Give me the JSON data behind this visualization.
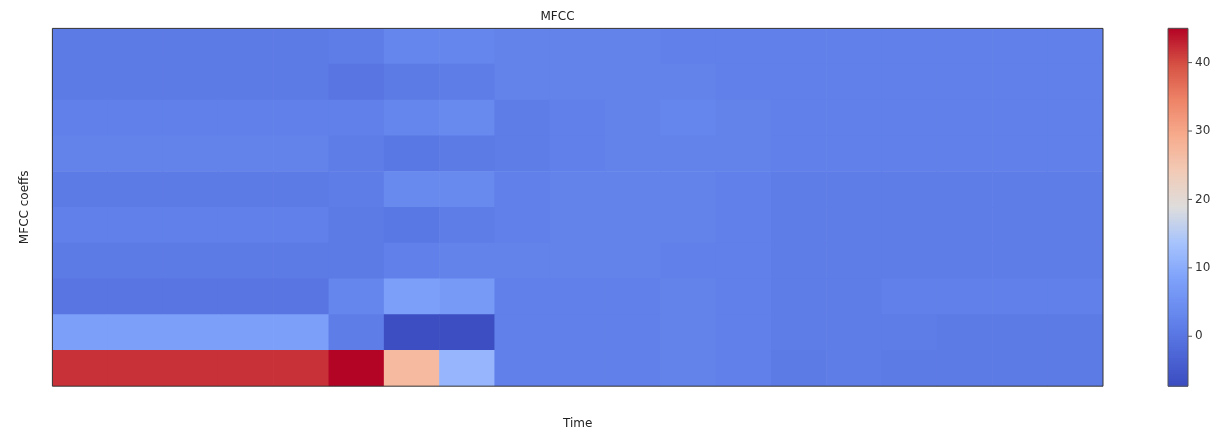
{
  "chart_data": {
    "type": "heatmap",
    "title": "MFCC",
    "xlabel": "Time",
    "ylabel": "MFCC coeffs",
    "categories": [
      null,
      null,
      null,
      null,
      null,
      null,
      null,
      null,
      null,
      null,
      null,
      null,
      null,
      null,
      null,
      null,
      null,
      null,
      null
    ],
    "y_categories": [
      null,
      null,
      null,
      null,
      null,
      null,
      null,
      null,
      null,
      null
    ],
    "cells": [
      [
        1,
        1,
        1,
        1,
        1,
        1.5,
        3,
        3,
        2.5,
        2.5,
        2.5,
        2,
        2,
        2,
        2,
        2,
        2,
        2,
        2
      ],
      [
        1,
        1,
        1,
        1,
        1,
        0,
        1,
        1.5,
        2.5,
        2.5,
        2.5,
        2.5,
        2,
        2,
        2,
        2,
        2,
        2,
        2
      ],
      [
        2,
        2,
        2,
        2,
        2,
        2,
        3,
        3.5,
        1.5,
        2,
        2.5,
        3,
        2.5,
        2,
        2,
        2,
        2,
        2,
        2
      ],
      [
        2.5,
        2.5,
        2.5,
        2.5,
        2.5,
        1.5,
        0.5,
        1,
        1.5,
        2,
        2.5,
        2.5,
        2.5,
        2,
        2,
        2,
        2,
        2,
        2
      ],
      [
        1,
        1,
        1,
        1,
        1,
        1.5,
        3.5,
        3.5,
        2,
        2.5,
        2.5,
        2.5,
        2,
        1.5,
        1.5,
        1.5,
        1.5,
        1.5,
        1.5
      ],
      [
        2,
        2,
        2,
        2,
        2,
        1,
        0.5,
        1.5,
        2,
        2.5,
        2.5,
        2.5,
        2,
        1.5,
        1.5,
        1.5,
        1.5,
        1.5,
        1.5
      ],
      [
        1,
        1,
        1,
        1,
        1,
        1,
        2,
        2.5,
        2.5,
        2.5,
        2.5,
        2,
        2,
        1.5,
        1.5,
        1.5,
        1.5,
        1.5,
        1.5
      ],
      [
        0,
        0,
        0,
        0,
        0,
        3,
        8,
        7,
        2,
        2,
        2,
        2.5,
        2,
        1.5,
        1.5,
        2,
        2,
        2,
        2
      ],
      [
        8,
        8,
        8,
        8,
        8,
        1.5,
        -7,
        -7,
        2,
        2,
        2,
        2.5,
        2,
        1.5,
        1.5,
        1.5,
        1,
        1,
        1
      ],
      [
        42,
        42,
        42,
        42,
        42,
        45,
        27,
        11.5,
        2,
        2,
        2,
        2.5,
        2,
        1,
        1.5,
        1,
        1,
        1,
        1
      ]
    ],
    "clim": [
      -7.3,
      45
    ],
    "cticks": [
      0,
      10,
      20,
      30,
      40
    ]
  }
}
